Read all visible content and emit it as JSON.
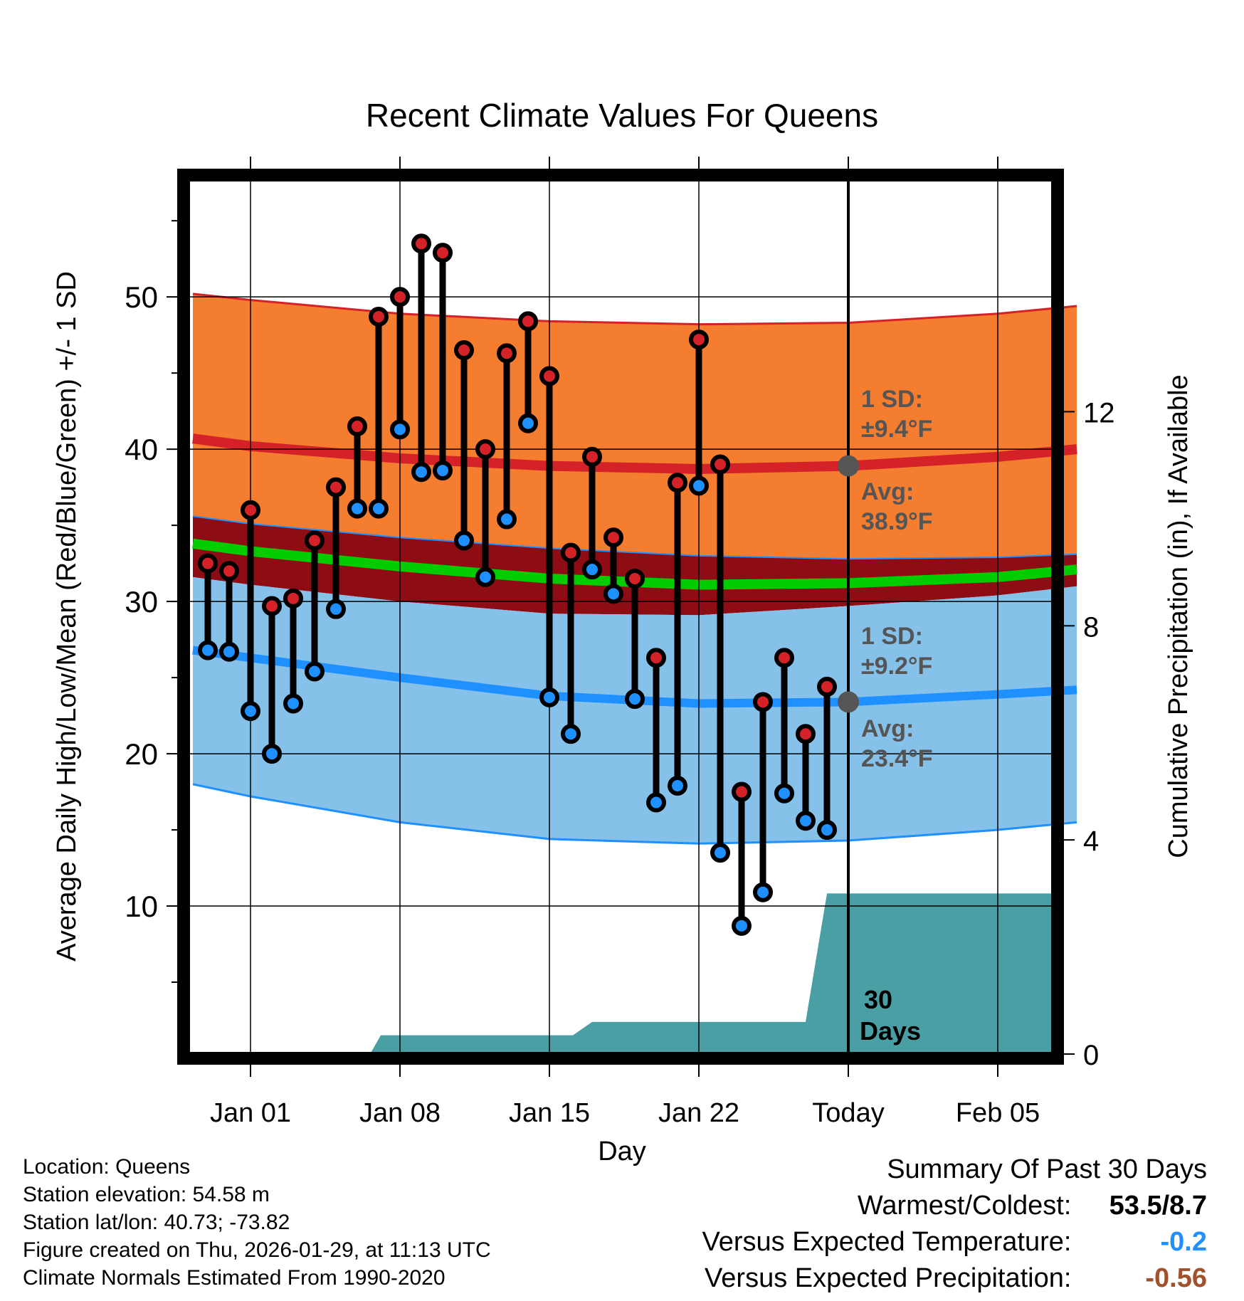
{
  "chart_data": {
    "type": "line",
    "title": "Recent Climate Values For Queens",
    "xlabel": "Day",
    "ylabel": "Average Daily High/Low/Mean (Red/Blue/Green) +/- 1 SD",
    "y2label": "Cumulative Precipitation (in), If Available",
    "x_range_days": [
      -3,
      40
    ],
    "ylim": [
      0,
      58
    ],
    "y_ticks": [
      10,
      20,
      30,
      40,
      50
    ],
    "y_minor_ticks": [
      5,
      15,
      25,
      35,
      45,
      55
    ],
    "y2lim": [
      0,
      16.5
    ],
    "y2_ticks": [
      0,
      4,
      8,
      12
    ],
    "x_ticks": [
      {
        "day": 0,
        "label": "Jan 01"
      },
      {
        "day": 7,
        "label": "Jan 08"
      },
      {
        "day": 14,
        "label": "Jan 15"
      },
      {
        "day": 21,
        "label": "Jan 22"
      },
      {
        "day": 28,
        "label": "Today"
      },
      {
        "day": 35,
        "label": "Feb 05"
      }
    ],
    "today_day": 28,
    "normals": {
      "days": [
        -2.7,
        0,
        7,
        14,
        21,
        28,
        35,
        38.7
      ],
      "high_plus_sd": [
        50.2,
        49.8,
        48.9,
        48.4,
        48.2,
        48.3,
        48.9,
        49.4
      ],
      "high_avg": [
        40.7,
        40.2,
        39.4,
        38.9,
        38.7,
        38.9,
        39.5,
        40.0
      ],
      "high_minus_sd": [
        35.6,
        35.1,
        34.2,
        33.5,
        33.0,
        32.8,
        32.9,
        33.1
      ],
      "mean_avg": [
        33.8,
        33.3,
        32.3,
        31.5,
        31.1,
        31.2,
        31.6,
        32.1
      ],
      "low_plus_sd": [
        31.6,
        31.1,
        30.0,
        29.2,
        29.1,
        29.7,
        30.4,
        31.0
      ],
      "low_avg": [
        26.8,
        26.3,
        25.0,
        23.8,
        23.3,
        23.4,
        23.9,
        24.2
      ],
      "low_minus_sd": [
        18.0,
        17.2,
        15.5,
        14.4,
        14.1,
        14.3,
        15.0,
        15.5
      ]
    },
    "high_band_label_1": "1 SD:",
    "high_band_label_2": "±9.4°F",
    "high_avg_label_1": "Avg:",
    "high_avg_label_2": "38.9°F",
    "high_avg_today": 38.9,
    "low_band_label_1": "1 SD:",
    "low_band_label_2": "±9.2°F",
    "low_avg_label_1": "Avg:",
    "low_avg_label_2": "23.4°F",
    "low_avg_today": 23.4,
    "observations": {
      "days": [
        -2,
        -1,
        0,
        1,
        2,
        3,
        4,
        5,
        6,
        7,
        8,
        9,
        10,
        11,
        12,
        13,
        14,
        15,
        16,
        17,
        18,
        19,
        20,
        21,
        22,
        23,
        24,
        25,
        26,
        27
      ],
      "highs": [
        32.5,
        32.0,
        36.0,
        29.7,
        30.2,
        34.0,
        37.5,
        41.5,
        48.7,
        50.0,
        53.5,
        52.9,
        46.5,
        40.0,
        46.3,
        48.4,
        44.8,
        33.2,
        39.5,
        34.2,
        31.5,
        26.3,
        37.8,
        47.2,
        39.0,
        17.5,
        23.4,
        26.3,
        21.3,
        24.4
      ],
      "lows": [
        26.8,
        26.7,
        22.8,
        20.0,
        23.3,
        25.4,
        29.5,
        36.1,
        36.1,
        41.3,
        38.5,
        38.6,
        34.0,
        31.6,
        35.4,
        41.7,
        23.7,
        21.3,
        32.1,
        30.5,
        23.6,
        16.8,
        17.9,
        37.6,
        13.5,
        8.7,
        10.9,
        17.4,
        15.6,
        15.0
      ]
    },
    "precip_cumulative": {
      "days": [
        -3,
        5,
        5.6,
        6.1,
        14,
        15.1,
        16,
        26,
        27.0,
        40
      ],
      "values": [
        0,
        0,
        0,
        0.35,
        0.35,
        0.35,
        0.6,
        0.6,
        3.0,
        3.0
      ]
    },
    "precip_label_1": "30",
    "precip_label_2": "Days",
    "colors": {
      "high_band": "#f57d30",
      "high_line": "#d42228",
      "mean_band": "#8e0d15",
      "mean_line": "#00cc00",
      "low_band": "#85c1e9",
      "low_line": "#1e90ff",
      "precip_fill": "#4a9fa5",
      "high_marker": "#d42228",
      "low_marker": "#1e90ff",
      "annotation_text": "#555555",
      "today_marker": "#555555"
    }
  },
  "metadata": {
    "location": "Location: Queens",
    "elevation": "Station elevation: 54.58 m",
    "latlon": "Station lat/lon: 40.73; -73.82",
    "created": "Figure created on Thu, 2026-01-29, at 11:13 UTC",
    "normals": "Climate Normals Estimated From 1990-2020"
  },
  "summary": {
    "title": "Summary Of Past 30 Days",
    "warm_cold_label": "Warmest/Coldest:",
    "warm_cold_value": "53.5/8.7",
    "temp_label": "Versus Expected Temperature:",
    "temp_value": "-0.2",
    "temp_color": "#1e90ff",
    "precip_label": "Versus Expected Precipitation:",
    "precip_value": "-0.56",
    "precip_color": "#a0522d"
  }
}
